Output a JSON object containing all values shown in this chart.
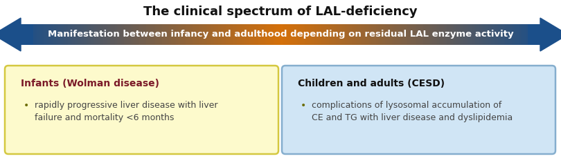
{
  "title": "The clinical spectrum of LAL-deficiency",
  "title_fontsize": 13,
  "title_color": "#111111",
  "arrow_text": "Manifestation between infancy and adulthood depending on residual LAL enzyme activity",
  "arrow_text_color": "#ffffff",
  "arrow_text_fontsize": 9.5,
  "arrow_blue": "#1B4F8A",
  "arrow_orange": "#D4700A",
  "bg_color": "#ffffff",
  "box_left_bg": "#FDFACC",
  "box_left_border": "#D4C840",
  "box_left_title": "Infants (Wolman disease)",
  "box_left_title_color": "#7B1A28",
  "box_left_bullet": "rapidly progressive liver disease with liver\nfailure and mortality <6 months",
  "box_left_bullet_color": "#444444",
  "box_right_bg": "#D0E5F5",
  "box_right_border": "#85AECE",
  "box_right_title": "Children and adults (CESD)",
  "box_right_title_color": "#111111",
  "box_right_bullet": "complications of lysosomal accumulation of\nCE and TG with liver disease and dyslipidemia",
  "box_right_bullet_color": "#444444"
}
